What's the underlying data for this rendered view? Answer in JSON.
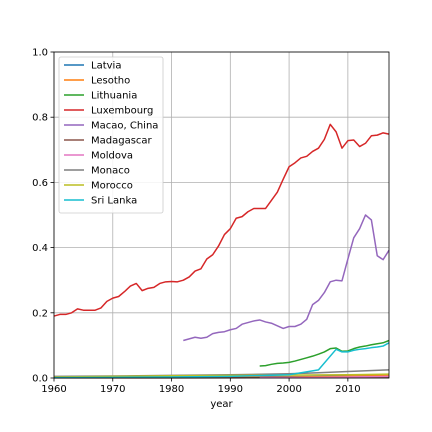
{
  "chart_data": {
    "type": "line",
    "title": "",
    "xlabel": "year",
    "ylabel": "",
    "xlim": [
      1960,
      2017
    ],
    "ylim": [
      0,
      1.0
    ],
    "x_ticks": [
      1960,
      1970,
      1980,
      1990,
      2000,
      2010
    ],
    "x_tick_labels": [
      "1960",
      "1970",
      "1980",
      "1990",
      "2000",
      "2010"
    ],
    "y_ticks": [
      0,
      0.2,
      0.4,
      0.6,
      0.8,
      1.0
    ],
    "y_tick_labels": [
      "0.0",
      "0.2",
      "0.4",
      "0.6",
      "0.8",
      "1.0"
    ],
    "grid": true,
    "legend_position": "upper-left",
    "series": [
      {
        "name": "Latvia",
        "color": "#1f77b4",
        "x": [
          1960,
          1970,
          1980,
          1990,
          2000,
          2005,
          2010,
          2017
        ],
        "y": [
          0.003,
          0.003,
          0.003,
          0.004,
          0.004,
          0.005,
          0.006,
          0.007
        ]
      },
      {
        "name": "Lesotho",
        "color": "#ff7f0e",
        "x": [
          1960,
          1970,
          1980,
          1990,
          2000,
          2010,
          2017
        ],
        "y": [
          0.001,
          0.001,
          0.001,
          0.002,
          0.003,
          0.005,
          0.008
        ]
      },
      {
        "name": "Lithuania",
        "color": "#2ca02c",
        "x": [
          1995,
          1996,
          1997,
          1998,
          1999,
          2000,
          2001,
          2002,
          2003,
          2004,
          2005,
          2006,
          2007,
          2008,
          2009,
          2010,
          2011,
          2012,
          2013,
          2014,
          2015,
          2016,
          2017
        ],
        "y": [
          0.037,
          0.038,
          0.042,
          0.045,
          0.046,
          0.048,
          0.052,
          0.057,
          0.062,
          0.067,
          0.073,
          0.08,
          0.09,
          0.092,
          0.082,
          0.083,
          0.09,
          0.095,
          0.098,
          0.102,
          0.105,
          0.108,
          0.115
        ]
      },
      {
        "name": "Luxembourg",
        "color": "#d62728",
        "x": [
          1960,
          1961,
          1962,
          1963,
          1964,
          1965,
          1966,
          1967,
          1968,
          1969,
          1970,
          1971,
          1972,
          1973,
          1974,
          1975,
          1976,
          1977,
          1978,
          1979,
          1980,
          1981,
          1982,
          1983,
          1984,
          1985,
          1986,
          1987,
          1988,
          1989,
          1990,
          1991,
          1992,
          1993,
          1994,
          1995,
          1996,
          1997,
          1998,
          1999,
          2000,
          2001,
          2002,
          2003,
          2004,
          2005,
          2006,
          2007,
          2008,
          2009,
          2010,
          2011,
          2012,
          2013,
          2014,
          2015,
          2016,
          2017
        ],
        "y": [
          0.19,
          0.195,
          0.195,
          0.2,
          0.212,
          0.208,
          0.208,
          0.208,
          0.215,
          0.235,
          0.245,
          0.25,
          0.265,
          0.282,
          0.29,
          0.268,
          0.275,
          0.278,
          0.29,
          0.295,
          0.296,
          0.295,
          0.3,
          0.31,
          0.328,
          0.335,
          0.365,
          0.378,
          0.405,
          0.44,
          0.458,
          0.49,
          0.495,
          0.51,
          0.52,
          0.52,
          0.52,
          0.545,
          0.57,
          0.61,
          0.648,
          0.66,
          0.675,
          0.68,
          0.695,
          0.705,
          0.732,
          0.778,
          0.755,
          0.705,
          0.728,
          0.73,
          0.71,
          0.72,
          0.743,
          0.745,
          0.752,
          0.748
        ]
      },
      {
        "name": "Macao, China",
        "color": "#9467bd",
        "x": [
          1982,
          1983,
          1984,
          1985,
          1986,
          1987,
          1988,
          1989,
          1990,
          1991,
          1992,
          1993,
          1994,
          1995,
          1996,
          1997,
          1998,
          1999,
          2000,
          2001,
          2002,
          2003,
          2004,
          2005,
          2006,
          2007,
          2008,
          2009,
          2010,
          2011,
          2012,
          2013,
          2014,
          2015,
          2016,
          2017
        ],
        "y": [
          0.115,
          0.12,
          0.125,
          0.122,
          0.125,
          0.136,
          0.14,
          0.142,
          0.148,
          0.152,
          0.165,
          0.17,
          0.175,
          0.178,
          0.172,
          0.168,
          0.16,
          0.152,
          0.158,
          0.158,
          0.165,
          0.18,
          0.225,
          0.238,
          0.262,
          0.295,
          0.3,
          0.298,
          0.365,
          0.43,
          0.458,
          0.5,
          0.485,
          0.375,
          0.363,
          0.392
        ]
      },
      {
        "name": "Madagascar",
        "color": "#8c564b",
        "x": [
          1960,
          1980,
          2000,
          2017
        ],
        "y": [
          0.0005,
          0.0005,
          0.001,
          0.002
        ]
      },
      {
        "name": "Moldova",
        "color": "#e377c2",
        "x": [
          1995,
          2000,
          2005,
          2010,
          2017
        ],
        "y": [
          0.001,
          0.001,
          0.002,
          0.003,
          0.005
        ]
      },
      {
        "name": "Monaco",
        "color": "#7f7f7f",
        "x": [
          1960,
          1970,
          1980,
          1990,
          2000,
          2005,
          2010,
          2017
        ],
        "y": [
          0.005,
          0.006,
          0.008,
          0.01,
          0.013,
          0.016,
          0.02,
          0.025
        ]
      },
      {
        "name": "Morocco",
        "color": "#bcbd22",
        "x": [
          1960,
          1970,
          1980,
          1990,
          2000,
          2010,
          2017
        ],
        "y": [
          0.003,
          0.005,
          0.007,
          0.008,
          0.009,
          0.01,
          0.012
        ]
      },
      {
        "name": "Sri Lanka",
        "color": "#17becf",
        "x": [
          1960,
          1970,
          1980,
          1990,
          2000,
          2005,
          2008,
          2009,
          2010,
          2011,
          2012,
          2013,
          2014,
          2015,
          2016,
          2017
        ],
        "y": [
          0.001,
          0.002,
          0.003,
          0.005,
          0.01,
          0.025,
          0.088,
          0.08,
          0.08,
          0.085,
          0.088,
          0.09,
          0.093,
          0.095,
          0.098,
          0.108
        ]
      }
    ]
  }
}
